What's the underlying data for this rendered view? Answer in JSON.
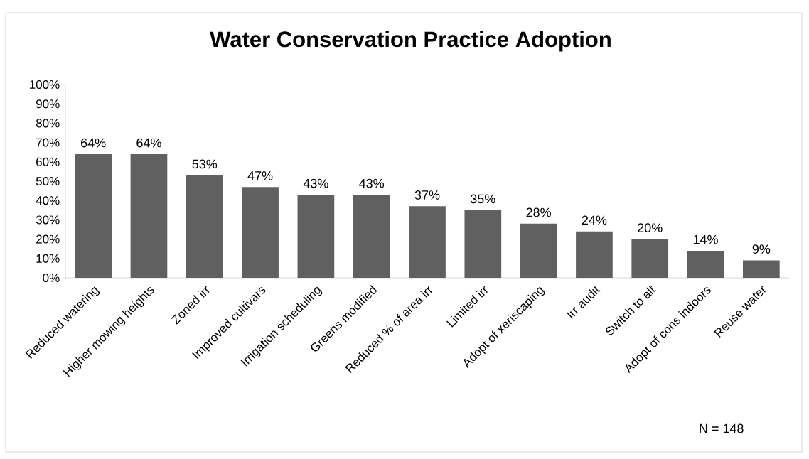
{
  "chart_data": {
    "type": "bar",
    "title": "Water Conservation Practice Adoption",
    "categories": [
      "Reduced watering",
      "Higher mowing heights",
      "Zoned irr",
      "Improved cultivars",
      "Irrigation scheduling",
      "Greens modified",
      "Reduced % of area irr",
      "Limited irr",
      "Adopt of xeriscaping",
      "Irr audit",
      "Switch to alt",
      "Adopt of cons indoors",
      "Reuse water"
    ],
    "values": [
      64,
      64,
      53,
      47,
      43,
      43,
      37,
      35,
      28,
      24,
      20,
      14,
      9
    ],
    "value_labels": [
      "64%",
      "64%",
      "53%",
      "47%",
      "43%",
      "43%",
      "37%",
      "35%",
      "28%",
      "24%",
      "20%",
      "14%",
      "9%"
    ],
    "color": "#606060",
    "ylim": [
      0,
      100
    ],
    "yticks": [
      {
        "value": 0,
        "label": "0%"
      },
      {
        "value": 10,
        "label": "10%"
      },
      {
        "value": 20,
        "label": "20%"
      },
      {
        "value": 30,
        "label": "30%"
      },
      {
        "value": 40,
        "label": "40%"
      },
      {
        "value": 50,
        "label": "50%"
      },
      {
        "value": 60,
        "label": "60%"
      },
      {
        "value": 70,
        "label": "70%"
      },
      {
        "value": 80,
        "label": "80%"
      },
      {
        "value": 90,
        "label": "90%"
      },
      {
        "value": 100,
        "label": "100%"
      }
    ],
    "annotations": [
      "N = 148"
    ]
  }
}
